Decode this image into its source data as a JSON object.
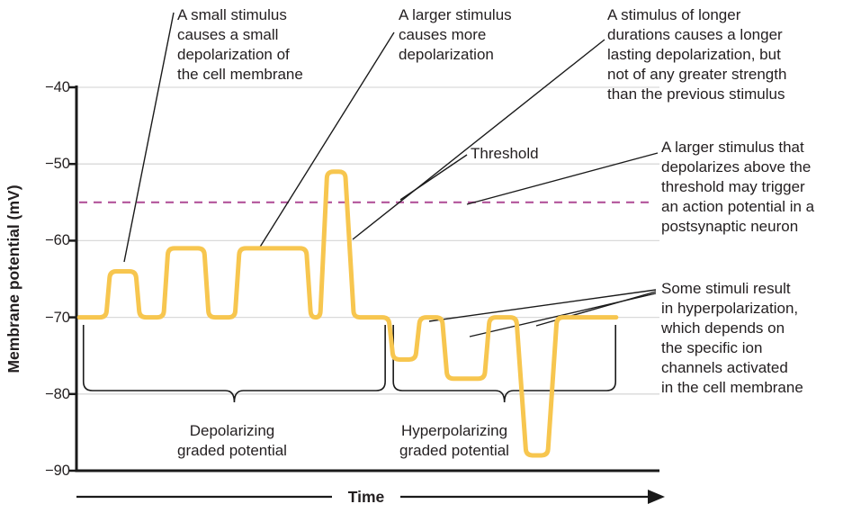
{
  "chart_data": {
    "type": "line",
    "title": "",
    "x_axis_label": "Time",
    "y_axis_label": "Membrane potential (mV)",
    "y_ticks": [
      "−40",
      "−50",
      "−60",
      "−70",
      "−80",
      "−90"
    ],
    "y_tick_values": [
      -40,
      -50,
      -60,
      -70,
      -80,
      -90
    ],
    "y_range_mV": [
      -90,
      -40
    ],
    "x_range_t": [
      0,
      100
    ],
    "baseline_mV": -70,
    "grid": true,
    "threshold": {
      "label": "Threshold",
      "value_mV": -55,
      "style": "dashed",
      "color": "#b2549b"
    },
    "trace": {
      "name": "membrane-potential",
      "color": "#f7c64f",
      "points_t_mV": [
        [
          0.5,
          -70
        ],
        [
          5.1,
          -70
        ],
        [
          5.8,
          -64
        ],
        [
          10.2,
          -64
        ],
        [
          10.9,
          -70
        ],
        [
          15.0,
          -70
        ],
        [
          15.8,
          -61
        ],
        [
          22.0,
          -61
        ],
        [
          22.8,
          -70
        ],
        [
          27.3,
          -70
        ],
        [
          28.1,
          -61
        ],
        [
          39.6,
          -61
        ],
        [
          40.4,
          -70
        ],
        [
          42.0,
          -70
        ],
        [
          43.2,
          -51
        ],
        [
          46.3,
          -51
        ],
        [
          47.8,
          -70
        ],
        [
          53.8,
          -70
        ],
        [
          54.6,
          -75.5
        ],
        [
          58.4,
          -75.5
        ],
        [
          59.2,
          -70
        ],
        [
          63.0,
          -70
        ],
        [
          63.9,
          -78
        ],
        [
          70.3,
          -78
        ],
        [
          71.2,
          -70
        ],
        [
          75.8,
          -70
        ],
        [
          77.5,
          -88
        ],
        [
          81.2,
          -88
        ],
        [
          82.8,
          -70
        ],
        [
          93.0,
          -70
        ]
      ],
      "event_peaks_mV": [
        -64,
        -61,
        -61,
        -51,
        -75.5,
        -78,
        -88
      ]
    },
    "regions": [
      {
        "label": "Depolarizing\ngraded potential",
        "t_start": 1.2,
        "t_end": 53.2
      },
      {
        "label": "Hyperpolarizing\ngraded potential",
        "t_start": 54.6,
        "t_end": 92.9
      }
    ]
  },
  "annotations": {
    "small_stimulus": "A small stimulus\ncauses a small\ndepolarization of\nthe cell membrane",
    "larger_stimulus": "A larger stimulus\ncauses more\ndepolarization",
    "longer_duration": "A stimulus of longer\ndurations causes a longer\nlasting depolarization, but\nnot of any greater strength\nthan the previous stimulus",
    "above_threshold": "A larger stimulus that\ndepolarizes above the\nthreshold may trigger\nan action potential in a\npostsynaptic neuron",
    "hyperpolarization": "Some stimuli result\nin hyperpolarization,\nwhich depends on\nthe specific ion\nchannels activated\nin the cell membrane"
  },
  "colors": {
    "trace": "#f7c64f",
    "threshold": "#b2549b",
    "grid": "#d9d9d9",
    "axis": "#1a1a1a",
    "text": "#231f20"
  }
}
